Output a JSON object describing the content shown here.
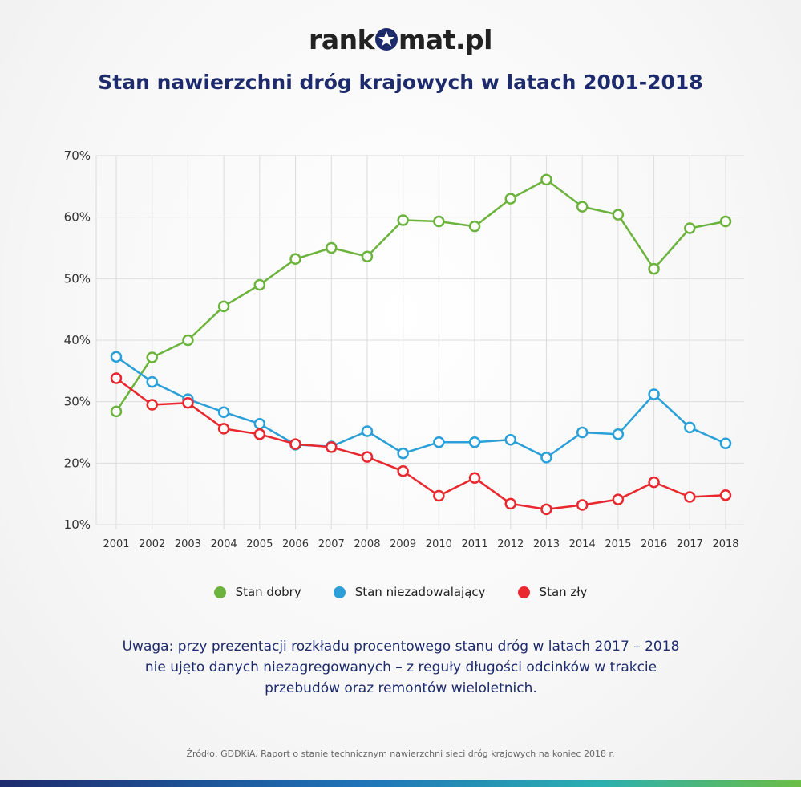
{
  "header": {
    "logo_text_left": "rank",
    "logo_text_right": "mat.pl",
    "title": "Stan nawierzchni dróg krajowych w latach 2001-2018"
  },
  "chart_data": {
    "type": "line",
    "title": "Stan nawierzchni dróg krajowych w latach 2001-2018",
    "x": [
      "2001",
      "2002",
      "2003",
      "2004",
      "2005",
      "2006",
      "2007",
      "2008",
      "2009",
      "2010",
      "2011",
      "2012",
      "2013",
      "2014",
      "2015",
      "2016",
      "2017",
      "2018"
    ],
    "ylim": [
      10,
      70
    ],
    "yticks": [
      10,
      20,
      30,
      40,
      50,
      60,
      70
    ],
    "ytick_labels": [
      "10%",
      "20%",
      "30%",
      "40%",
      "50%",
      "60%",
      "70%"
    ],
    "grid": true,
    "legend_position": "bottom",
    "series": [
      {
        "name": "Stan dobry",
        "color": "#6cb33e",
        "values": [
          28.4,
          37.2,
          40.0,
          45.5,
          49.0,
          53.2,
          55.0,
          53.6,
          59.5,
          59.3,
          58.5,
          63.0,
          66.1,
          61.7,
          60.4,
          51.6,
          58.2,
          59.3
        ]
      },
      {
        "name": "Stan niezadowalający",
        "color": "#2a9fd8",
        "values": [
          37.3,
          33.2,
          30.4,
          28.3,
          26.4,
          23.0,
          22.7,
          25.2,
          21.6,
          23.4,
          23.4,
          23.8,
          20.9,
          25.0,
          24.7,
          31.2,
          25.8,
          23.2
        ]
      },
      {
        "name": "Stan zły",
        "color": "#e8282e",
        "values": [
          33.8,
          29.5,
          29.8,
          25.6,
          24.7,
          23.1,
          22.6,
          21.0,
          18.7,
          14.7,
          17.6,
          13.4,
          12.5,
          13.2,
          14.1,
          16.9,
          14.5,
          14.8
        ]
      }
    ]
  },
  "note": {
    "line1": "Uwaga: przy prezentacji rozkładu procentowego stanu dróg w latach 2017 – 2018",
    "line2": "nie ujęto danych niezagregowanych – z reguły długości odcinków w trakcie",
    "line3": "przebudów oraz remontów wieloletnich."
  },
  "source": "Źródło: GDDKiA. Raport o stanie technicznym nawierzchni sieci dróg krajowych na koniec 2018 r."
}
